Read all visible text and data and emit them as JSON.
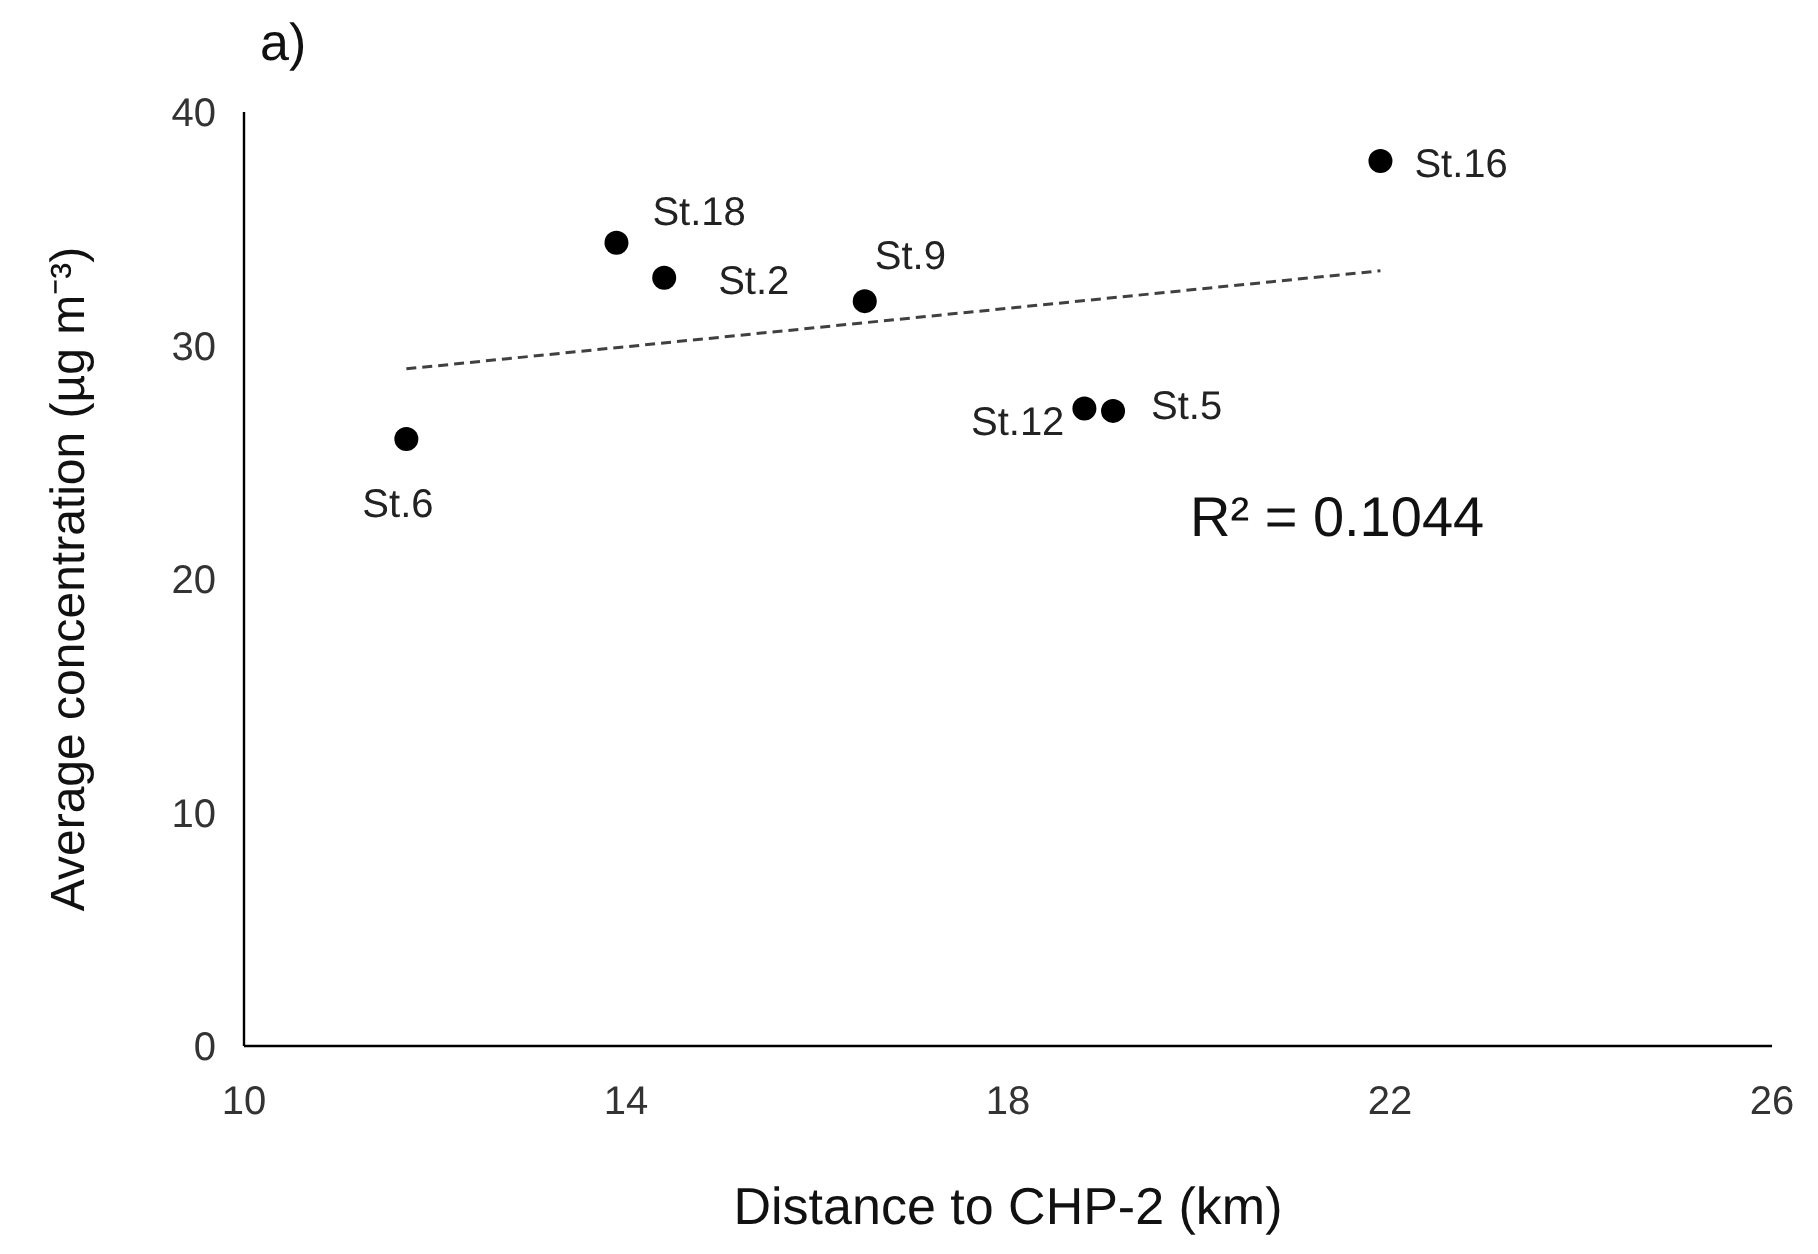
{
  "chart_data": {
    "type": "scatter",
    "title": "a)",
    "xlabel": "Distance to CHP-2 (km)",
    "ylabel": "Average concentration (µg m⁻³)",
    "xlim": [
      10,
      26
    ],
    "xticks": [
      10,
      14,
      18,
      22,
      26
    ],
    "ylim": [
      0,
      40
    ],
    "yticks": [
      0,
      10,
      20,
      30,
      40
    ],
    "grid": false,
    "series": [
      {
        "color": "#000000",
        "marker": "circle",
        "x": [
          11.7,
          13.9,
          14.4,
          16.5,
          18.8,
          19.1,
          21.9
        ],
        "values": [
          26.0,
          34.4,
          32.9,
          31.9,
          27.3,
          27.2,
          37.9
        ]
      },
      {
        "type": "line",
        "color": "#404040",
        "line_style": "dashed",
        "marker": "none",
        "x": [
          11.7,
          21.9
        ],
        "values": [
          29.0,
          33.2
        ]
      }
    ],
    "annotations": [
      {
        "text": "St.6",
        "x": 11.7,
        "y": 26.0
      },
      {
        "text": "St.18",
        "x": 13.9,
        "y": 34.4
      },
      {
        "text": "St.2",
        "x": 14.4,
        "y": 32.9
      },
      {
        "text": "St.9",
        "x": 16.5,
        "y": 31.9
      },
      {
        "text": "St.12",
        "x": 18.8,
        "y": 27.3
      },
      {
        "text": "St.5",
        "x": 19.1,
        "y": 27.2
      },
      {
        "text": "St.16",
        "x": 21.9,
        "y": 37.9
      },
      "R² = 0.1044"
    ]
  }
}
